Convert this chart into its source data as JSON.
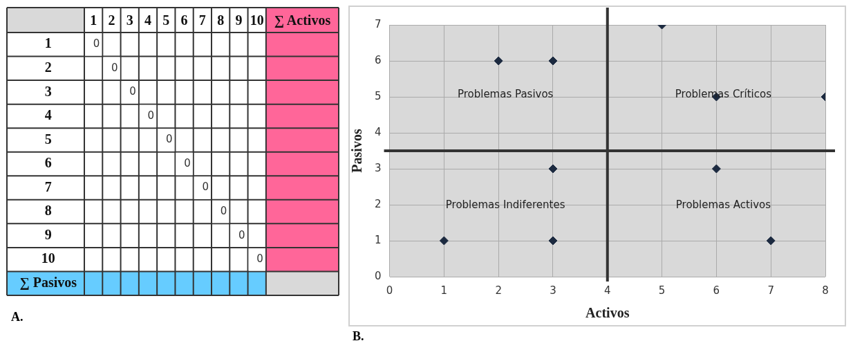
{
  "chart_data": [
    {
      "type": "heatmap",
      "categories": [
        "1",
        "2",
        "3",
        "4",
        "5",
        "6",
        "7",
        "8",
        "9",
        "10",
        "∑ Activos"
      ],
      "y_categories": [
        "1",
        "2",
        "3",
        "4",
        "5",
        "6",
        "7",
        "8",
        "9",
        "10",
        "∑ Pasivos"
      ],
      "cells": [
        [
          0,
          null,
          null,
          null,
          null,
          null,
          null,
          null,
          null,
          null,
          null
        ],
        [
          null,
          0,
          null,
          null,
          null,
          null,
          null,
          null,
          null,
          null,
          null
        ],
        [
          null,
          null,
          0,
          null,
          null,
          null,
          null,
          null,
          null,
          null,
          null
        ],
        [
          null,
          null,
          null,
          0,
          null,
          null,
          null,
          null,
          null,
          null,
          null
        ],
        [
          null,
          null,
          null,
          null,
          0,
          null,
          null,
          null,
          null,
          null,
          null
        ],
        [
          null,
          null,
          null,
          null,
          null,
          0,
          null,
          null,
          null,
          null,
          null
        ],
        [
          null,
          null,
          null,
          null,
          null,
          null,
          0,
          null,
          null,
          null,
          null
        ],
        [
          null,
          null,
          null,
          null,
          null,
          null,
          null,
          0,
          null,
          null,
          null
        ],
        [
          null,
          null,
          null,
          null,
          null,
          null,
          null,
          null,
          0,
          null,
          null
        ],
        [
          null,
          null,
          null,
          null,
          null,
          null,
          null,
          null,
          null,
          0,
          null
        ],
        [
          null,
          null,
          null,
          null,
          null,
          null,
          null,
          null,
          null,
          null,
          null
        ]
      ],
      "data_labels": true,
      "annotations": [
        "A."
      ]
    },
    {
      "type": "scatter",
      "xlabel": "Activos",
      "ylabel": "Pasivos",
      "x": [
        1,
        2,
        3,
        3,
        3,
        5,
        6,
        6,
        7,
        8
      ],
      "series": [
        {
          "color": "#1c2a40",
          "values": [
            1,
            6,
            6,
            3,
            1,
            7,
            5,
            3,
            1,
            5
          ]
        }
      ],
      "xlim": [
        0,
        8
      ],
      "xticks": [
        0,
        1,
        2,
        3,
        4,
        5,
        6,
        7,
        8
      ],
      "ylim": [
        0,
        7
      ],
      "yticks": [
        0,
        1,
        2,
        3,
        4,
        5,
        6,
        7
      ],
      "grid": true,
      "legend": false,
      "marker": "diamond",
      "ref_lines": [
        {
          "axis": "x",
          "value": 4,
          "color": "#333333"
        },
        {
          "axis": "y",
          "value": 3.5,
          "color": "#333333"
        }
      ],
      "annotations": [
        "Problemas Pasivos",
        "Problemas Críticos",
        "Problemas Indiferentes",
        "Problemas Activos",
        "B."
      ]
    }
  ]
}
